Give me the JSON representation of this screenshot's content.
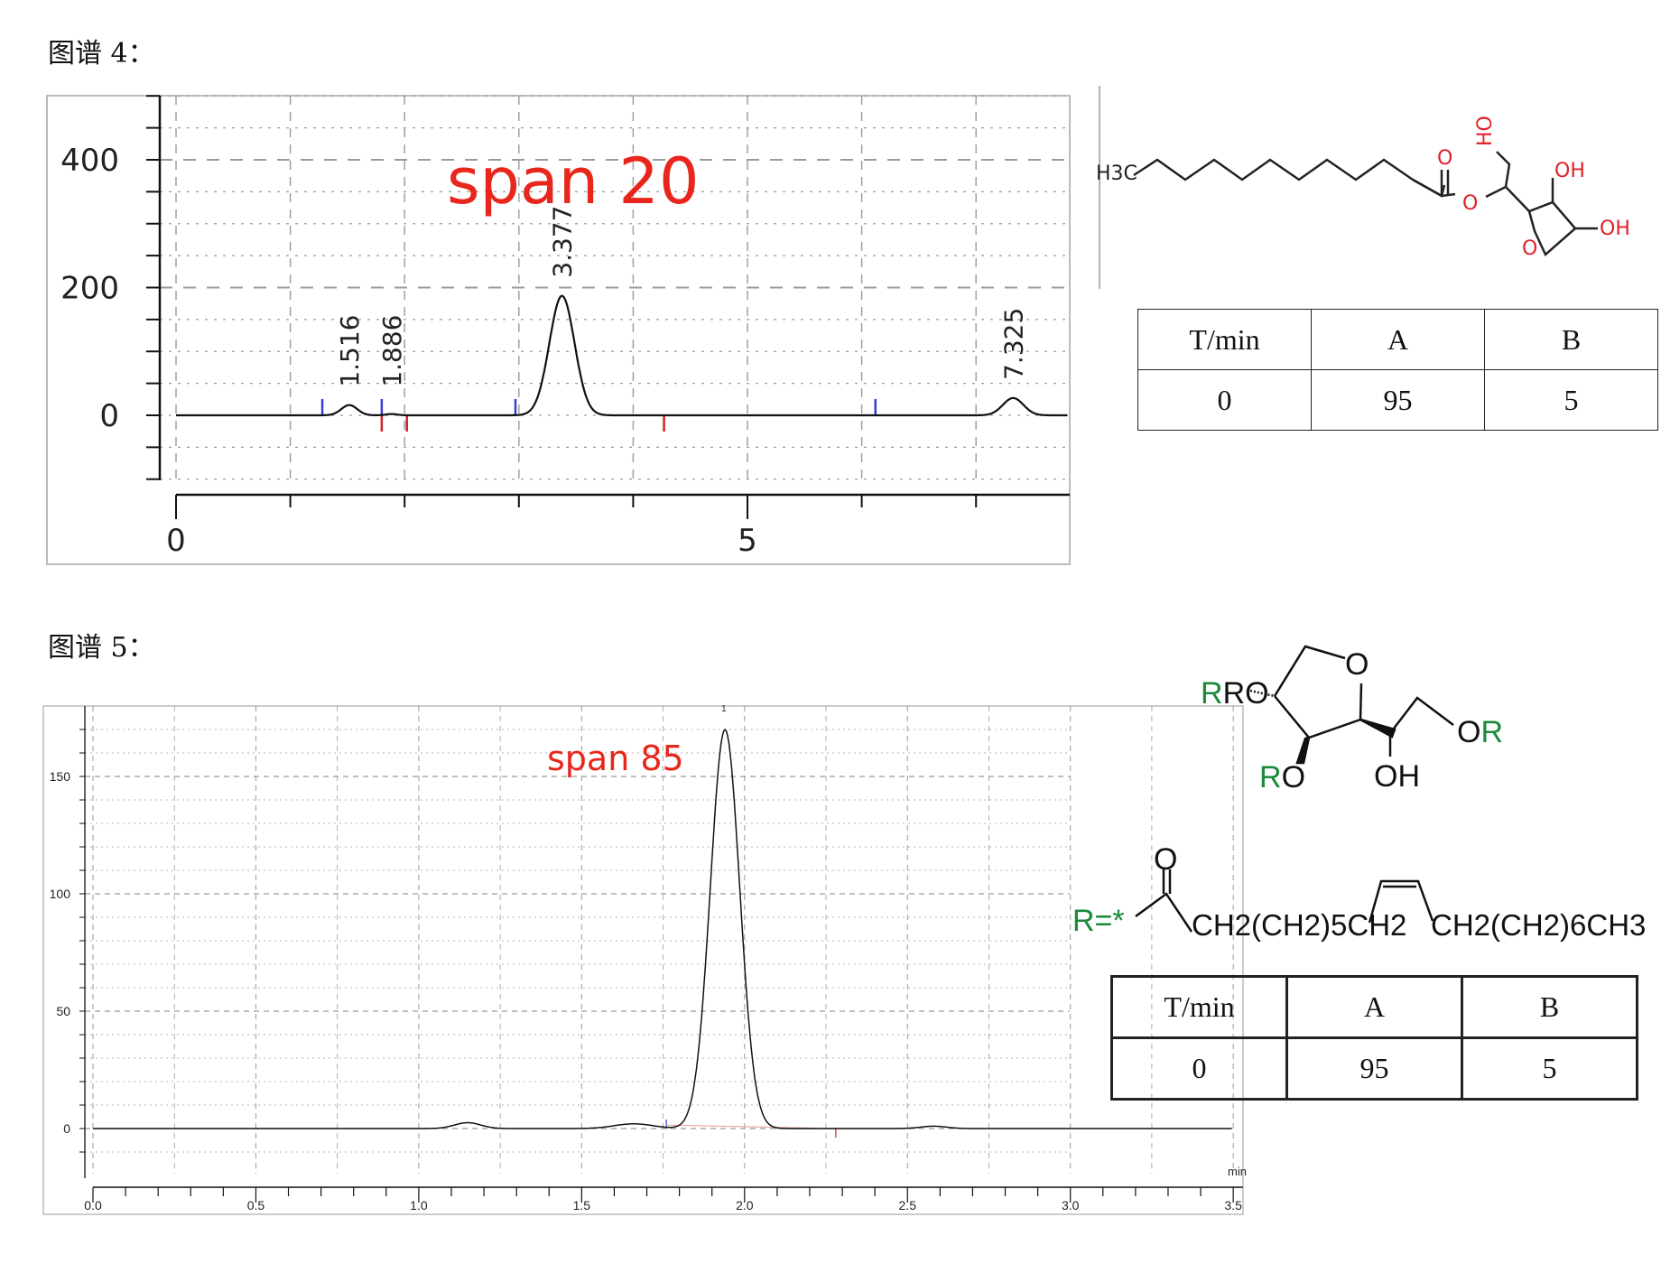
{
  "figures": [
    {
      "label": "图谱 4：",
      "annotation": "span 20",
      "table": {
        "headers": [
          "T/min",
          "A",
          "B"
        ],
        "rows": [
          [
            "0",
            "95",
            "5"
          ]
        ]
      },
      "structure": {
        "labels": [
          "H3C",
          "O",
          "O",
          "HO",
          "OH",
          "OH",
          "O"
        ]
      }
    },
    {
      "label": "图谱 5：",
      "annotation": "span 85",
      "table": {
        "headers": [
          "T/min",
          "A",
          "B"
        ],
        "rows": [
          [
            "0",
            "95",
            "5"
          ]
        ]
      },
      "structure": {
        "labels": [
          "RO",
          "O",
          "RO",
          "OH",
          "OR"
        ],
        "r_group": {
          "prefix": "R=*",
          "carbonyl_o": "O",
          "chain_a": "CH2(CH2)5CH2",
          "chain_b": "CH2(CH2)6CH3"
        }
      }
    }
  ],
  "colors": {
    "annotation": "#e8261c",
    "trace": "#111111",
    "grid": "#9a9a9a",
    "start_marker": "#3b3bd6",
    "end_marker": "#d62020",
    "r_group": "#1a8a3a",
    "hetero_atom": "#e0202a"
  },
  "chart_data": [
    {
      "type": "line",
      "title": "",
      "xlabel": "",
      "ylabel": "",
      "xlim": [
        0,
        7.8
      ],
      "ylim": [
        -100,
        500
      ],
      "x_ticks": [
        0,
        5
      ],
      "y_ticks": [
        0,
        200,
        400
      ],
      "grid": true,
      "peaks": [
        {
          "rt": 1.516,
          "height": 16,
          "sigma": 0.07,
          "label": "1.516"
        },
        {
          "rt": 1.886,
          "height": 2,
          "sigma": 0.05,
          "label": "1.886"
        },
        {
          "rt": 3.377,
          "height": 187,
          "sigma": 0.11,
          "label": "3.377"
        },
        {
          "rt": 7.325,
          "height": 27,
          "sigma": 0.09,
          "label": "7.325"
        }
      ],
      "start_markers": [
        1.28,
        1.8,
        2.97,
        6.12
      ],
      "end_markers": [
        1.8,
        2.02,
        4.27
      ]
    },
    {
      "type": "line",
      "title": "",
      "xlabel": "min",
      "ylabel": "",
      "xlim": [
        0,
        3.5
      ],
      "ylim": [
        -17,
        180
      ],
      "x_ticks": [
        "0.0",
        "0.5",
        "1.0",
        "1.5",
        "2.0",
        "2.5",
        "3.0",
        "3.5"
      ],
      "y_ticks": [
        "0",
        "50",
        "100",
        "150"
      ],
      "grid": true,
      "peaks": [
        {
          "rt": 1.15,
          "height": 2.5,
          "sigma": 0.04,
          "label": ""
        },
        {
          "rt": 1.66,
          "height": 2,
          "sigma": 0.06,
          "label": ""
        },
        {
          "rt": 1.94,
          "height": 170,
          "sigma": 0.045,
          "label": "1"
        },
        {
          "rt": 2.58,
          "height": 1,
          "sigma": 0.04,
          "label": ""
        }
      ],
      "start_markers": [
        1.76
      ],
      "end_markers": [
        2.28
      ]
    }
  ]
}
